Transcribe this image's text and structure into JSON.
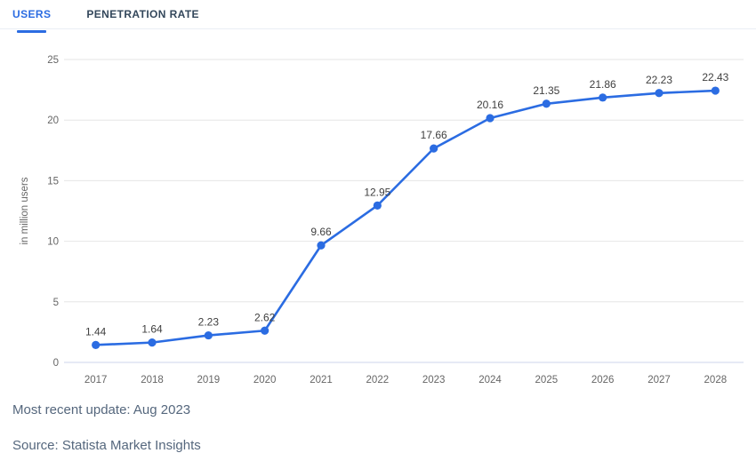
{
  "tabs": [
    {
      "label": "USERS",
      "active": true
    },
    {
      "label": "PENETRATION RATE",
      "active": false
    }
  ],
  "colors": {
    "accent": "#2b6ce2",
    "inactive_tab": "#33475b",
    "gridline": "#e6e6e6",
    "axis_line": "#ccd6eb",
    "tick_label": "#666666",
    "data_label": "#3f3f3f",
    "footer_text": "#55677d"
  },
  "chart_data": {
    "type": "line",
    "categories": [
      "2017",
      "2018",
      "2019",
      "2020",
      "2021",
      "2022",
      "2023",
      "2024",
      "2025",
      "2026",
      "2027",
      "2028"
    ],
    "values": [
      1.44,
      1.64,
      2.23,
      2.62,
      9.66,
      12.95,
      17.66,
      20.16,
      21.35,
      21.86,
      22.23,
      22.43
    ],
    "data_labels": [
      "1.44",
      "1.64",
      "2.23",
      "2.62",
      "9.66",
      "12.95",
      "17.66",
      "20.16",
      "21.35",
      "21.86",
      "22.23",
      "22.43"
    ],
    "title": "",
    "xlabel": "",
    "ylabel": "in million users",
    "ylim": [
      0,
      25
    ],
    "ytick_step": 5,
    "yticks": [
      "0",
      "5",
      "10",
      "15",
      "20",
      "25"
    ],
    "grid": true,
    "legend": false,
    "marker": "circle"
  },
  "footer": {
    "update": "Most recent update: Aug 2023",
    "source": "Source: Statista Market Insights"
  }
}
